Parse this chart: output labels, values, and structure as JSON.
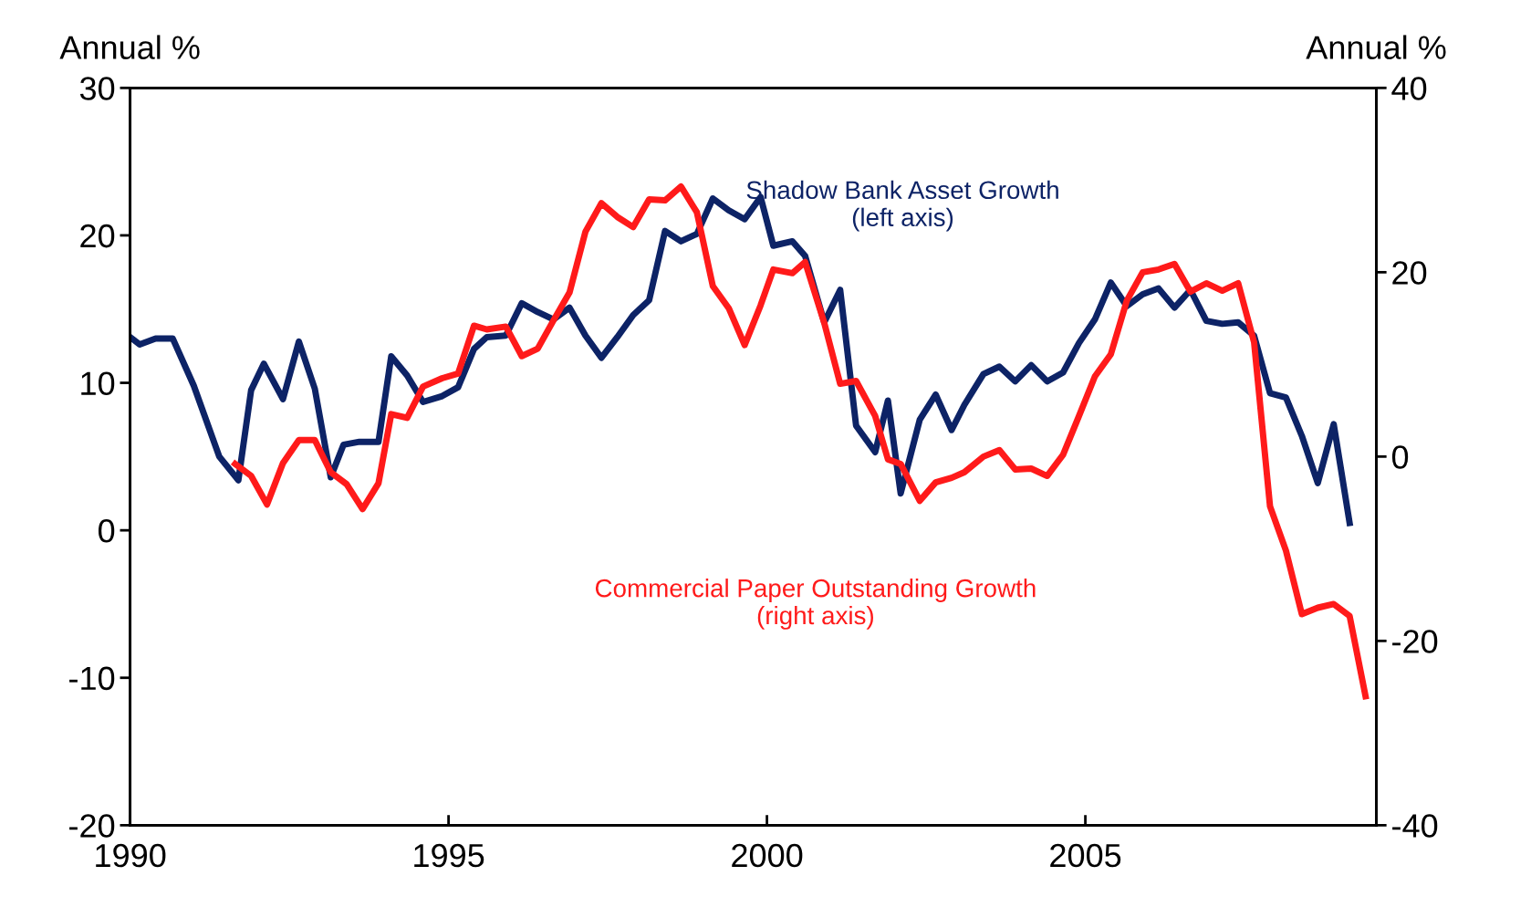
{
  "chart_data": {
    "type": "line",
    "ylabel": "Annual %",
    "y2label": "Annual %",
    "xlim": [
      1990,
      2009.57
    ],
    "xticks": [
      1990,
      1995,
      2000,
      2005
    ],
    "ylim": [
      -20,
      30
    ],
    "yticks": [
      -20,
      -10,
      0,
      10,
      20,
      30
    ],
    "y2lim": [
      -40,
      40
    ],
    "y2ticks": [
      -40,
      -20,
      0,
      20,
      40
    ],
    "grid": false,
    "legend": false,
    "marker": "none",
    "line_style": "solid",
    "series": [
      {
        "name": "Shadow Bank Asset Growth\n(left axis)",
        "color": "#0d2366",
        "axis": "y",
        "x": [
          1990.0,
          1990.15,
          1990.4,
          1990.67,
          1991.0,
          1991.4,
          1991.7,
          1991.9,
          1992.1,
          1992.4,
          1992.65,
          1992.9,
          1993.15,
          1993.35,
          1993.6,
          1993.9,
          1994.1,
          1994.35,
          1994.6,
          1994.9,
          1995.15,
          1995.4,
          1995.6,
          1995.9,
          1996.15,
          1996.4,
          1996.65,
          1996.9,
          1997.15,
          1997.4,
          1997.65,
          1997.9,
          1998.15,
          1998.4,
          1998.65,
          1998.9,
          1999.15,
          1999.4,
          1999.65,
          1999.9,
          2000.1,
          2000.4,
          2000.6,
          2000.9,
          2001.15,
          2001.4,
          2001.7,
          2001.9,
          2002.1,
          2002.4,
          2002.65,
          2002.9,
          2003.1,
          2003.4,
          2003.65,
          2003.9,
          2004.15,
          2004.4,
          2004.65,
          2004.9,
          2005.15,
          2005.4,
          2005.65,
          2005.9,
          2006.15,
          2006.4,
          2006.65,
          2006.9,
          2007.15,
          2007.4,
          2007.65,
          2007.9,
          2008.15,
          2008.4,
          2008.65,
          2008.9,
          2009.15
        ],
        "values": [
          13.1,
          12.6,
          13.0,
          13.0,
          9.8,
          5.0,
          3.4,
          9.5,
          11.3,
          8.9,
          12.8,
          9.6,
          3.6,
          5.8,
          6.0,
          6.0,
          11.8,
          10.5,
          8.7,
          9.1,
          9.7,
          12.3,
          13.1,
          13.2,
          15.4,
          14.8,
          14.3,
          15.1,
          13.2,
          11.7,
          13.1,
          14.6,
          15.6,
          20.3,
          19.6,
          20.1,
          22.5,
          21.7,
          21.1,
          22.6,
          19.3,
          19.6,
          18.6,
          14.1,
          16.3,
          7.1,
          5.3,
          8.8,
          2.5,
          7.5,
          9.2,
          6.8,
          8.5,
          10.6,
          11.1,
          10.1,
          11.2,
          10.1,
          10.7,
          12.7,
          14.3,
          16.8,
          15.2,
          16.0,
          16.4,
          15.1,
          16.3,
          14.2,
          14.0,
          14.1,
          13.2,
          9.3,
          9.0,
          6.4,
          3.2,
          7.2,
          0.5
        ]
      },
      {
        "name": "Commercial Paper Outstanding Growth\n(right axis)",
        "color": "#ff1a1a",
        "axis": "y2",
        "x": [
          1991.65,
          1991.9,
          1992.15,
          1992.4,
          1992.65,
          1992.9,
          1993.15,
          1993.4,
          1993.65,
          1993.9,
          1994.1,
          1994.35,
          1994.6,
          1994.9,
          1995.15,
          1995.4,
          1995.6,
          1995.9,
          1996.15,
          1996.4,
          1996.65,
          1996.9,
          1997.15,
          1997.4,
          1997.65,
          1997.9,
          1998.15,
          1998.4,
          1998.65,
          1998.9,
          1999.15,
          1999.4,
          1999.65,
          1999.9,
          2000.1,
          2000.4,
          2000.6,
          2000.9,
          2001.15,
          2001.4,
          2001.7,
          2001.9,
          2002.1,
          2002.4,
          2002.65,
          2002.9,
          2003.1,
          2003.4,
          2003.65,
          2003.9,
          2004.15,
          2004.4,
          2004.65,
          2004.9,
          2005.15,
          2005.4,
          2005.65,
          2005.9,
          2006.15,
          2006.4,
          2006.65,
          2006.9,
          2007.15,
          2007.4,
          2007.65,
          2007.9,
          2008.15,
          2008.4,
          2008.65,
          2008.9,
          2009.15,
          2009.4
        ],
        "values": [
          -0.8,
          -2.1,
          -5.2,
          -0.7,
          1.8,
          1.8,
          -1.7,
          -3.0,
          -5.7,
          -2.9,
          4.6,
          4.2,
          7.6,
          8.5,
          9.0,
          14.2,
          13.8,
          14.1,
          10.9,
          11.7,
          14.8,
          17.8,
          24.4,
          27.5,
          26.0,
          24.9,
          27.9,
          27.8,
          29.3,
          26.5,
          18.5,
          16.1,
          12.1,
          16.4,
          20.3,
          19.9,
          21.1,
          14.5,
          7.9,
          8.2,
          4.4,
          -0.3,
          -0.8,
          -4.8,
          -2.8,
          -2.3,
          -1.7,
          0.0,
          0.7,
          -1.4,
          -1.3,
          -2.1,
          0.2,
          4.4,
          8.7,
          11.1,
          16.9,
          20.0,
          20.3,
          20.9,
          17.9,
          18.8,
          18.0,
          18.8,
          12.4,
          -5.4,
          -10.2,
          -17.1,
          -16.4,
          -16.0,
          -17.3,
          -26.0
        ]
      }
    ]
  }
}
